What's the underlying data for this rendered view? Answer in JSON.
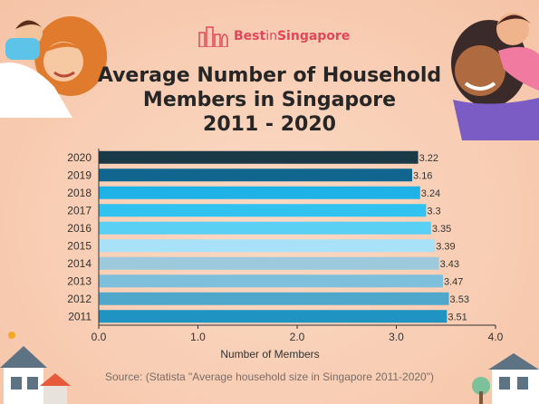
{
  "brand": {
    "name_prefix": "Best",
    "name_mid": "in",
    "name_suffix": "Singapore",
    "color": "#e2465a"
  },
  "colors": {
    "background": "#f8cdb3",
    "title": "#262626",
    "bar_2020": "#1b3a48",
    "bar_2019": "#10668e",
    "bar_2018": "#1eb2e6",
    "bar_2017": "#31c2f0",
    "bar_2016": "#5bd0f5",
    "bar_2015": "#a8e2f8",
    "bar_2014": "#9cc9dc",
    "bar_2013": "#7ec0dc",
    "bar_2012": "#4fa8cc",
    "bar_2011": "#1f93c2"
  },
  "chart_data": {
    "type": "bar",
    "orientation": "horizontal",
    "title_lines": [
      "Average Number of Household",
      "Members in Singapore",
      "2011 - 2020"
    ],
    "categories": [
      "2020",
      "2019",
      "2018",
      "2017",
      "2016",
      "2015",
      "2014",
      "2013",
      "2012",
      "2011"
    ],
    "values": [
      3.22,
      3.16,
      3.24,
      3.3,
      3.35,
      3.39,
      3.43,
      3.47,
      3.53,
      3.51
    ],
    "value_labels": [
      "3.22",
      "3.16",
      "3.24",
      "3.3",
      "3.35",
      "3.39",
      "3.43",
      "3.47",
      "3.53",
      "3.51"
    ],
    "xlabel": "Number of Members",
    "ylabel": "",
    "xlim": [
      0.0,
      4.0
    ],
    "xticks": [
      "0.0",
      "1.0",
      "2.0",
      "3.0",
      "4.0"
    ],
    "grid": false,
    "legend": "none"
  },
  "source": "Source: (Statista \"Average household size in Singapore 2011-2020\")"
}
